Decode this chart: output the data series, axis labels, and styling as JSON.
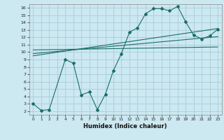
{
  "title": "",
  "xlabel": "Humidex (Indice chaleur)",
  "bg_color": "#cce8f0",
  "grid_color": "#a8cdd8",
  "line_color": "#1a6e6a",
  "xlim": [
    -0.5,
    23.5
  ],
  "ylim": [
    1.5,
    16.5
  ],
  "xticks": [
    0,
    1,
    2,
    3,
    4,
    5,
    6,
    7,
    8,
    9,
    10,
    11,
    12,
    13,
    14,
    15,
    16,
    17,
    18,
    19,
    20,
    21,
    22,
    23
  ],
  "yticks": [
    2,
    3,
    4,
    5,
    6,
    7,
    8,
    9,
    10,
    11,
    12,
    13,
    14,
    15,
    16
  ],
  "line1_x": [
    0,
    1,
    2,
    4,
    5,
    6,
    7,
    8,
    9,
    10,
    11,
    12,
    13,
    14,
    15,
    16,
    17,
    18,
    19,
    20,
    21,
    22,
    23
  ],
  "line1_y": [
    3.0,
    2.1,
    2.2,
    9.0,
    8.5,
    4.2,
    4.6,
    2.2,
    4.3,
    7.5,
    9.8,
    12.7,
    13.3,
    15.2,
    15.9,
    15.9,
    15.6,
    16.2,
    14.1,
    12.3,
    11.8,
    12.2,
    13.1
  ],
  "line2_x": [
    0,
    23
  ],
  "line2_y": [
    9.5,
    13.2
  ],
  "line3_x": [
    0,
    23
  ],
  "line3_y": [
    9.8,
    12.1
  ],
  "line4_x": [
    0,
    23
  ],
  "line4_y": [
    10.3,
    10.7
  ]
}
